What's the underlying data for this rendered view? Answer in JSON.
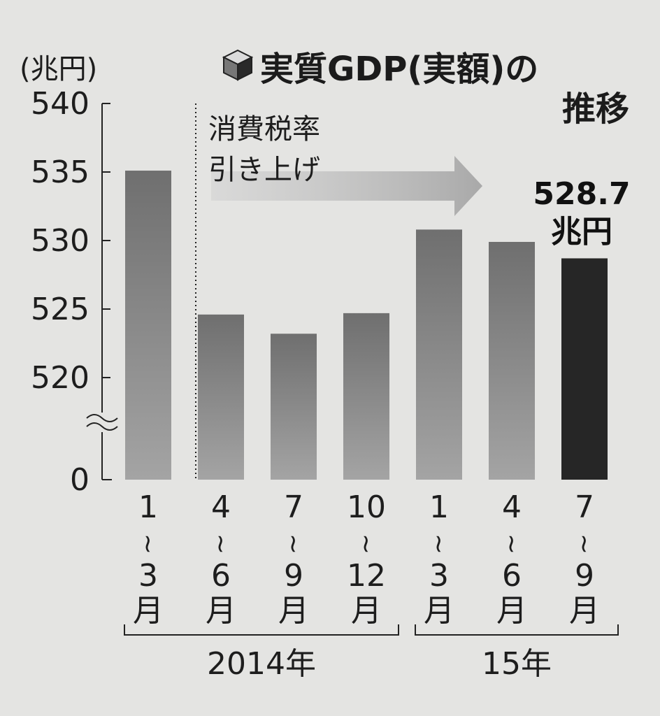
{
  "chart_data": {
    "type": "bar",
    "title": "実質GDP(実額)の",
    "title_line2": "推移",
    "unit_label": "(兆円)",
    "categories": [
      {
        "top": "1",
        "tilde": "~",
        "bottom": "3",
        "tsuki": "月"
      },
      {
        "top": "4",
        "tilde": "~",
        "bottom": "6",
        "tsuki": "月"
      },
      {
        "top": "7",
        "tilde": "~",
        "bottom": "9",
        "tsuki": "月"
      },
      {
        "top": "10",
        "tilde": "~",
        "bottom": "12",
        "tsuki": "月"
      },
      {
        "top": "1",
        "tilde": "~",
        "bottom": "3",
        "tsuki": "月"
      },
      {
        "top": "4",
        "tilde": "~",
        "bottom": "6",
        "tsuki": "月"
      },
      {
        "top": "7",
        "tilde": "~",
        "bottom": "9",
        "tsuki": "月"
      }
    ],
    "values": [
      535.1,
      524.6,
      523.2,
      524.7,
      530.8,
      529.9,
      528.7
    ],
    "highlight_index": 6,
    "yticks": [
      "540",
      "535",
      "530",
      "525",
      "520",
      "0"
    ],
    "ylim": [
      518,
      540
    ],
    "axis_break": true,
    "years": [
      {
        "label": "2014年",
        "from": 0,
        "to": 3
      },
      {
        "label": "15年",
        "from": 4,
        "to": 6
      }
    ],
    "annotation": {
      "line1": "消費税率",
      "line2": "引き上げ"
    },
    "value_label": {
      "value": "528.7",
      "unit": "兆円"
    },
    "colors": {
      "bar": "#8c8c8c",
      "bar_highlight": "#262626",
      "arrow": "#b9b9b9",
      "background": "#e4e4e2"
    },
    "grid": false
  }
}
